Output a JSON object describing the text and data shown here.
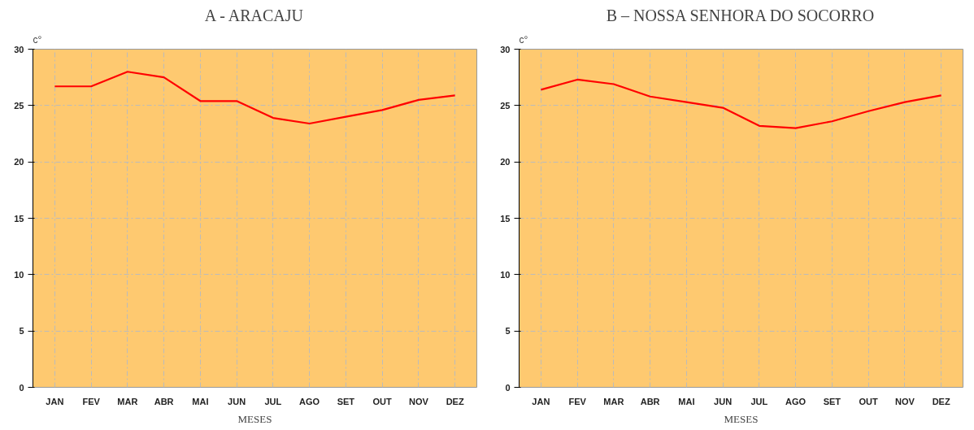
{
  "chart_data": [
    {
      "type": "line",
      "title": "A - ARACAJU",
      "xlabel": "MESES",
      "ylabel": "c°",
      "categories": [
        "JAN",
        "FEV",
        "MAR",
        "ABR",
        "MAI",
        "JUN",
        "JUL",
        "AGO",
        "SET",
        "OUT",
        "NOV",
        "DEZ"
      ],
      "series": [
        {
          "color": "#ff0000",
          "values": [
            26.7,
            26.7,
            28.0,
            27.5,
            25.4,
            25.4,
            23.9,
            23.4,
            24.0,
            24.6,
            25.5,
            25.9
          ]
        }
      ],
      "ylim": [
        0,
        30
      ],
      "yticks": [
        0,
        5,
        10,
        15,
        20,
        25,
        30
      ],
      "grid": true,
      "marker": "none",
      "line_style": "solid"
    },
    {
      "type": "line",
      "title": "B – NOSSA SENHORA DO SOCORRO",
      "xlabel": "MESES",
      "ylabel": "c°",
      "categories": [
        "JAN",
        "FEV",
        "MAR",
        "ABR",
        "MAI",
        "JUN",
        "JUL",
        "AGO",
        "SET",
        "OUT",
        "NOV",
        "DEZ"
      ],
      "series": [
        {
          "color": "#ff0000",
          "values": [
            26.4,
            27.3,
            26.9,
            25.8,
            25.3,
            24.8,
            23.2,
            23.0,
            23.6,
            24.5,
            25.3,
            25.9
          ]
        }
      ],
      "ylim": [
        0,
        30
      ],
      "yticks": [
        0,
        5,
        10,
        15,
        20,
        25,
        30
      ],
      "grid": true,
      "marker": "none",
      "line_style": "solid"
    }
  ]
}
